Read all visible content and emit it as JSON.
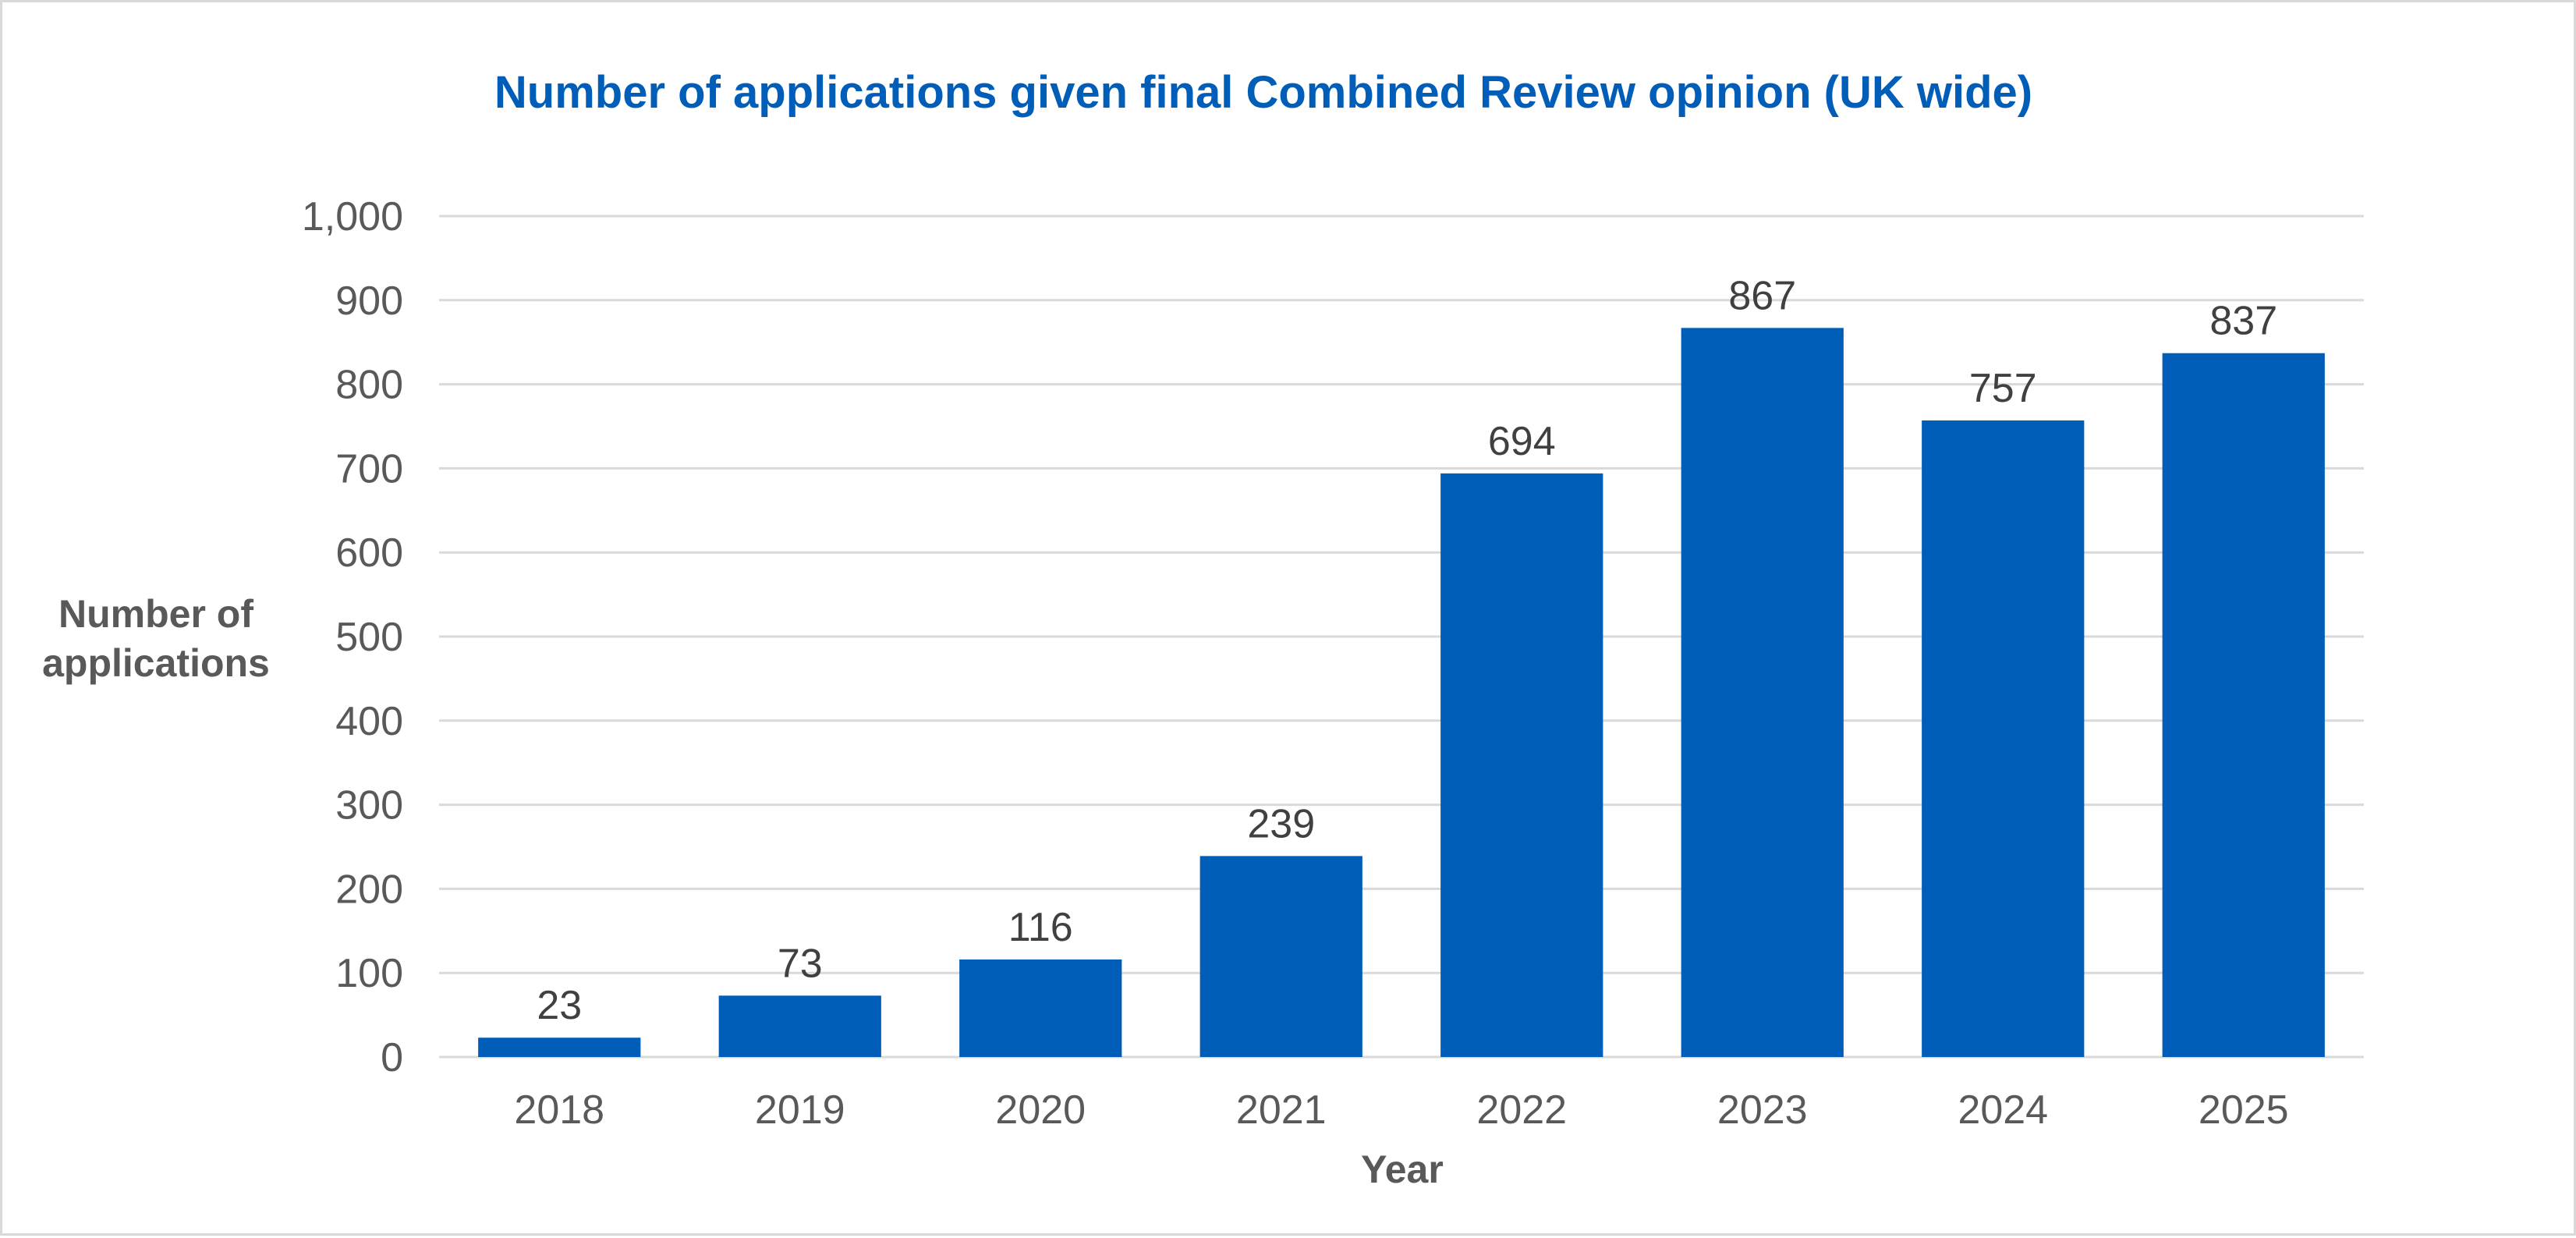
{
  "colors": {
    "bar": "#005EB8",
    "title": "#005EB8",
    "gridline": "#d9d9d9",
    "axis_text": "#595959",
    "label_text": "#404040"
  },
  "chart_data": {
    "type": "bar",
    "title": "Number of applications given final Combined Review opinion (UK wide)",
    "xlabel": "Year",
    "ylabel_lines": [
      "Number of",
      "applications"
    ],
    "categories": [
      "2018",
      "2019",
      "2020",
      "2021",
      "2022",
      "2023",
      "2024",
      "2025"
    ],
    "values": [
      23,
      73,
      116,
      239,
      694,
      867,
      757,
      837
    ],
    "ylim": [
      0,
      1000
    ],
    "yticks": [
      0,
      100,
      200,
      300,
      400,
      500,
      600,
      700,
      800,
      900,
      1000
    ],
    "ytick_labels": [
      "0",
      "100",
      "200",
      "300",
      "400",
      "500",
      "600",
      "700",
      "800",
      "900",
      "1,000"
    ],
    "grid": true,
    "legend": "none",
    "data_labels": true
  }
}
